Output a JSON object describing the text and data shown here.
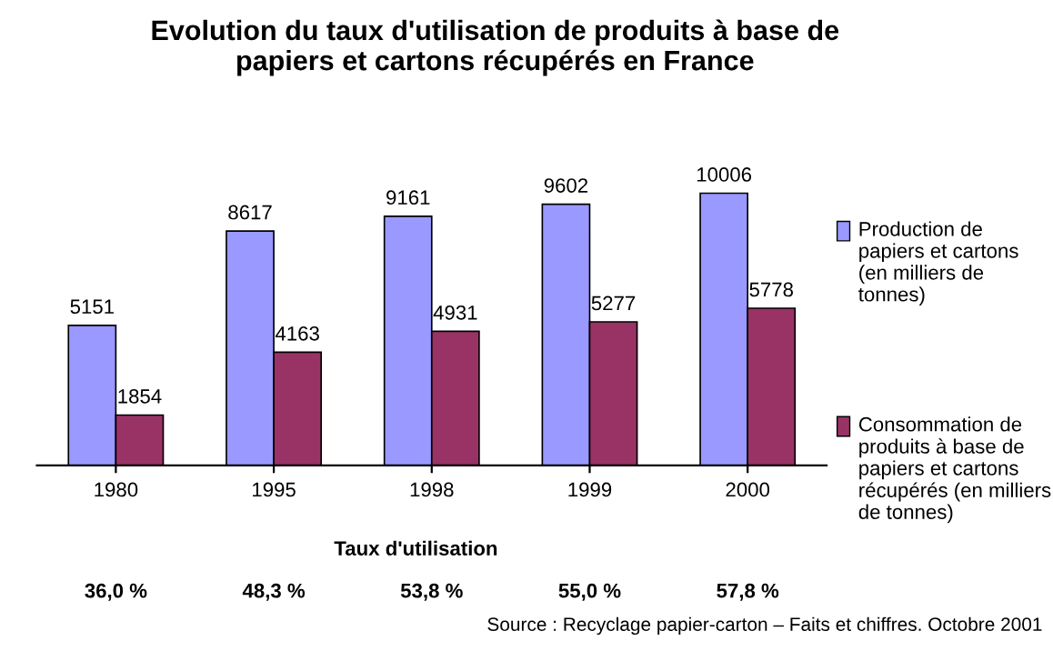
{
  "chart_data": {
    "type": "bar",
    "title": "Evolution du taux d'utilisation de produits à base de\npapiers et cartons récupérés en France",
    "categories": [
      "1980",
      "1995",
      "1998",
      "1999",
      "2000"
    ],
    "series": [
      {
        "name": "Production de papiers et cartons (en milliers de tonnes)",
        "color": "#9999ff",
        "values": [
          5151,
          8617,
          9161,
          9602,
          10006
        ]
      },
      {
        "name": "Consommation de produits à base de papiers et cartons récupérés (en milliers de tonnes)",
        "color": "#993366",
        "values": [
          1854,
          4163,
          4931,
          5277,
          5778
        ]
      }
    ],
    "tick_labels": "x",
    "data_labels": true,
    "grid": false,
    "legend": "right",
    "annotations": [
      "Taux d'utilisation",
      "36,0 %",
      "48,3 %",
      "53,8 %",
      "55,0 %",
      "57,8 %",
      "Source : Recyclage papier-carton – Faits et chiffres. Octobre 2001"
    ]
  }
}
